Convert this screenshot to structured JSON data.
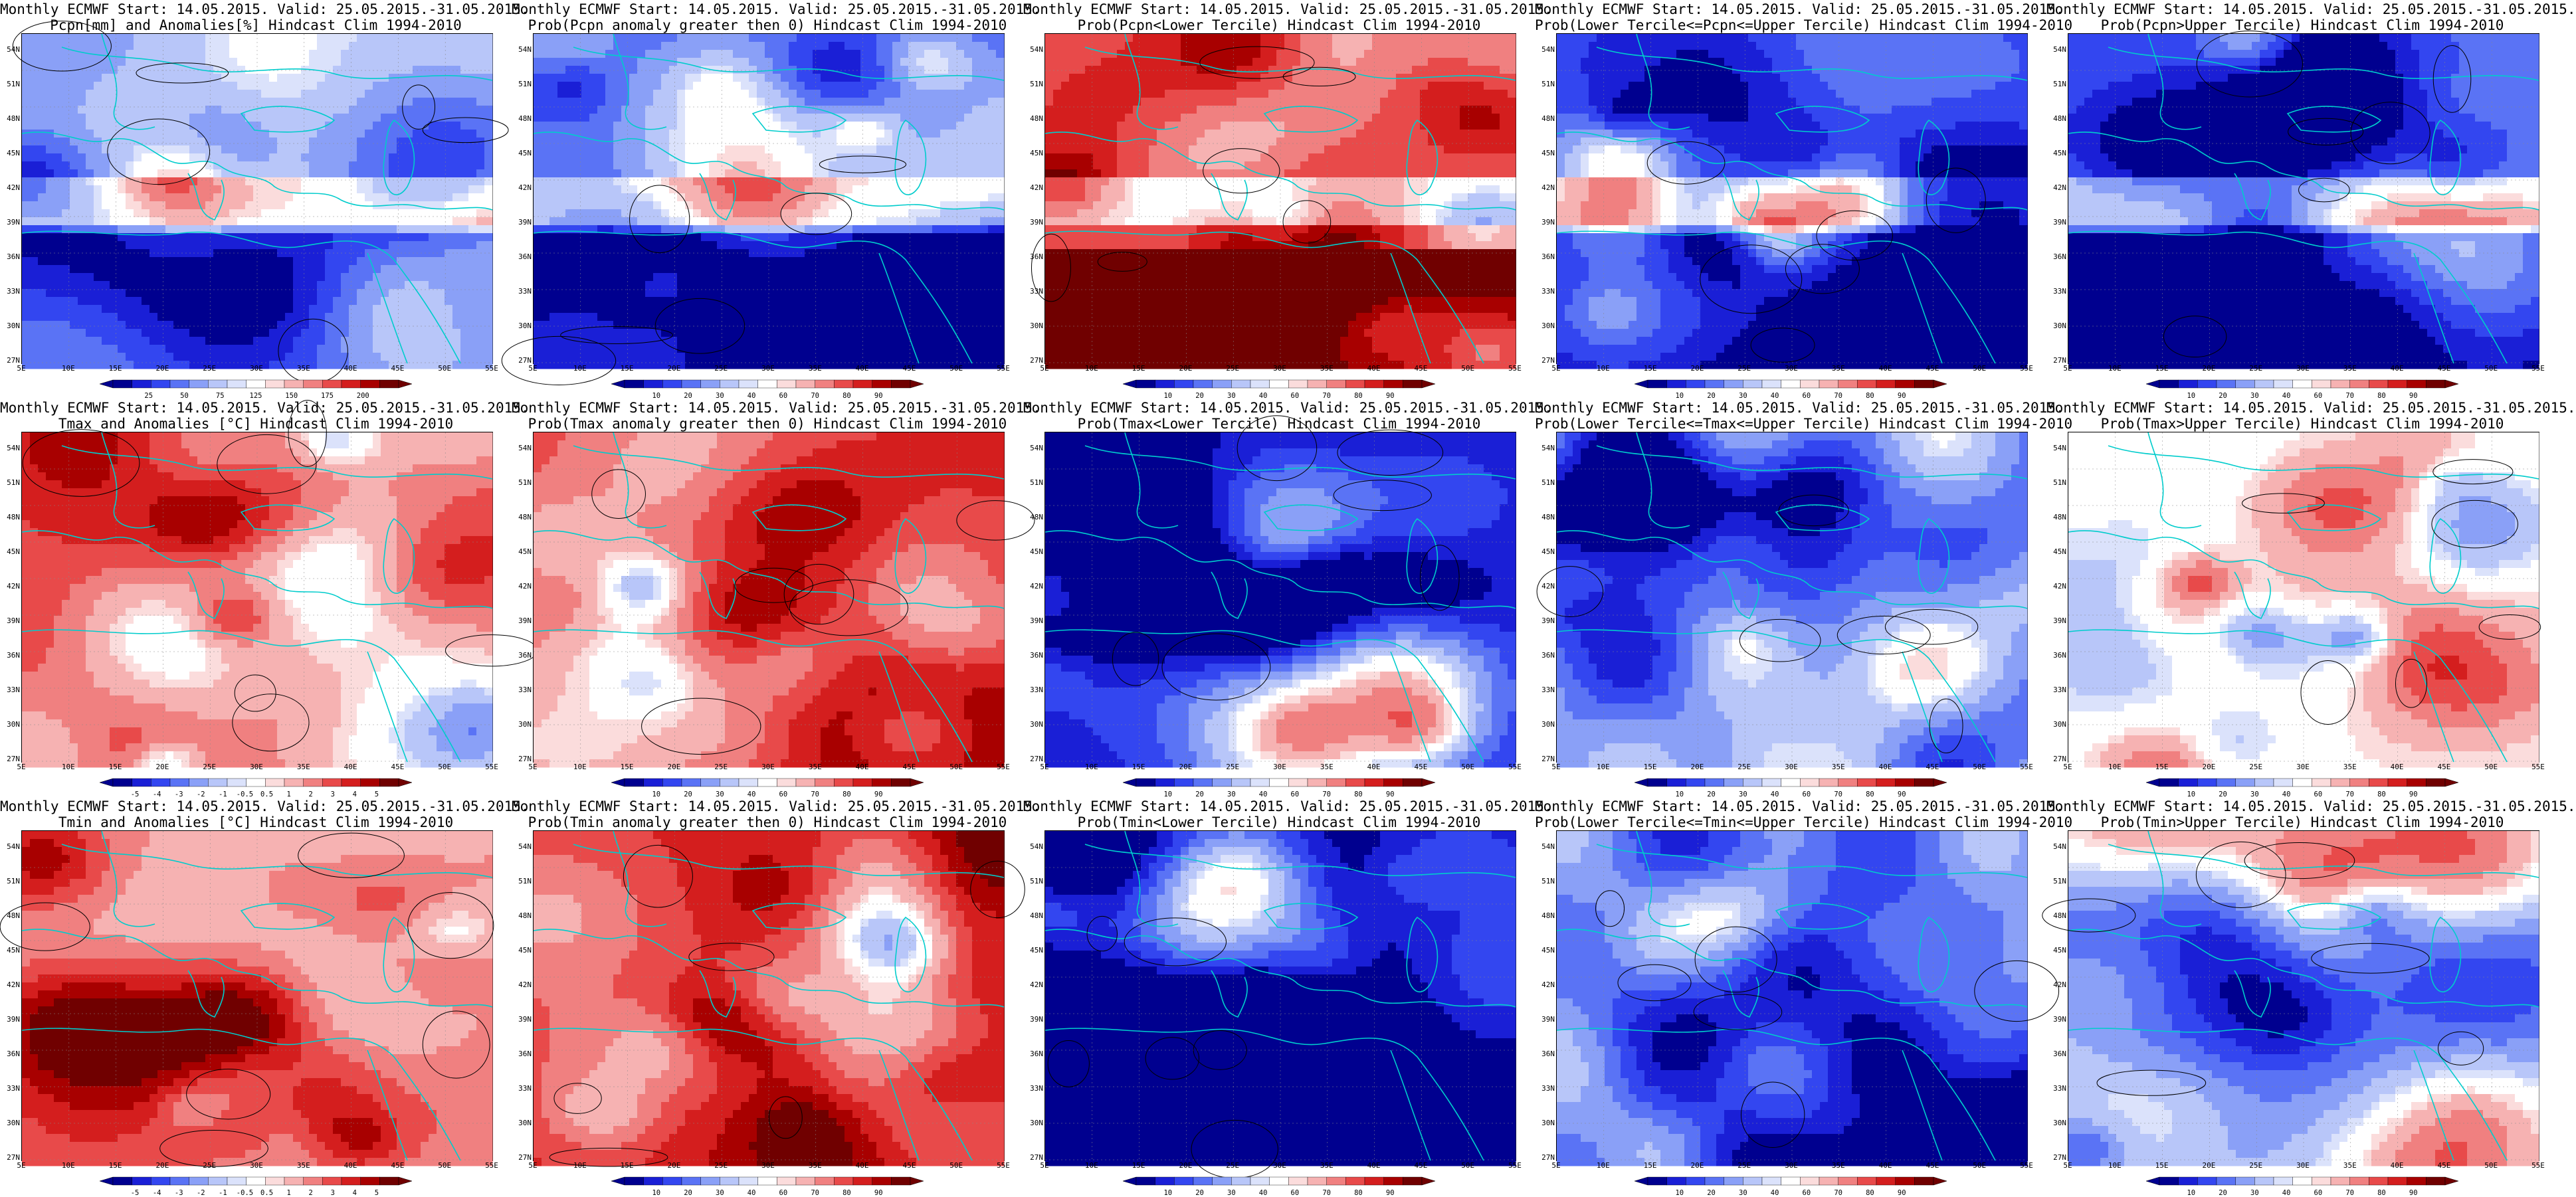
{
  "colors": {
    "blue_ramp": [
      "#00008f",
      "#1a1fd6",
      "#3346f0",
      "#5a73f5",
      "#8aa0f7",
      "#b8c6f9",
      "#dbe2fb"
    ],
    "red_ramp": [
      "#fbdcdc",
      "#f6b2b2",
      "#f08080",
      "#e84a4a",
      "#d41e1e",
      "#a80000",
      "#700000"
    ],
    "white": "#ffffff",
    "coast": "#00cccc",
    "contour": "#000000"
  },
  "axes": {
    "y_ticks": [
      "54N",
      "51N",
      "48N",
      "45N",
      "42N",
      "39N",
      "36N",
      "33N",
      "30N",
      "27N"
    ],
    "x_ticks": [
      "5E",
      "10E",
      "15E",
      "20E",
      "25E",
      "30E",
      "35E",
      "40E",
      "45E",
      "50E",
      "55E"
    ]
  },
  "colorbars": {
    "precip_anom": [
      "25",
      "50",
      "75",
      "125",
      "150",
      "175",
      "200"
    ],
    "prob": [
      "10",
      "20",
      "30",
      "40",
      "60",
      "70",
      "80",
      "90"
    ],
    "temp_anom": [
      "-5",
      "-4",
      "-3",
      "-2",
      "-1",
      "-0.5",
      "0.5",
      "1",
      "2",
      "3",
      "4",
      "5"
    ]
  },
  "panels": [
    {
      "title1": "Monthly ECMWF Start: 14.05.2015. Valid: 25.05.2015.-31.05.2015.",
      "title2": "Pcpn[mm] and Anomalies[%] Hindcast Clim 1994-2010",
      "cbar": "precip_anom",
      "bias": -0.15,
      "seed": 1,
      "pattern": "pcp"
    },
    {
      "title1": "Monthly ECMWF Start: 14.05.2015. Valid: 25.05.2015.-31.05.2015.",
      "title2": "Prob(Pcpn anomaly greater then 0) Hindcast Clim 1994-2010",
      "cbar": "prob",
      "bias": -0.55,
      "seed": 2,
      "pattern": "pcp"
    },
    {
      "title1": "Monthly ECMWF Start: 14.05.2015. Valid: 25.05.2015.-31.05.2015.",
      "title2": "Prob(Pcpn<Lower Tercile) Hindcast Clim 1994-2010",
      "cbar": "prob",
      "bias": 0.35,
      "seed": 3,
      "pattern": "pcpinv"
    },
    {
      "title1": "Monthly ECMWF Start: 14.05.2015. Valid: 25.05.2015.-31.05.2015.",
      "title2": "Prob(Lower Tercile<=Pcpn<=Upper Tercile) Hindcast Clim 1994-2010",
      "cbar": "prob",
      "bias": -0.65,
      "seed": 4,
      "pattern": "pcp"
    },
    {
      "title1": "Monthly ECMWF Start: 14.05.2015. Valid: 25.05.2015.-31.05.2015.",
      "title2": "Prob(Pcpn>Upper Tercile) Hindcast Clim 1994-2010",
      "cbar": "prob",
      "bias": -0.6,
      "seed": 5,
      "pattern": "pcp"
    },
    {
      "title1": "Monthly ECMWF Start: 14.05.2015. Valid: 25.05.2015.-31.05.2015.",
      "title2": "Tmax and Anomalies [°C] Hindcast Clim 1994-2010",
      "cbar": "temp_anom",
      "bias": 0.4,
      "seed": 6,
      "pattern": "warm"
    },
    {
      "title1": "Monthly ECMWF Start: 14.05.2015. Valid: 25.05.2015.-31.05.2015.",
      "title2": "Prob(Tmax anomaly greater then 0) Hindcast Clim 1994-2010",
      "cbar": "prob",
      "bias": 0.55,
      "seed": 7,
      "pattern": "warm"
    },
    {
      "title1": "Monthly ECMWF Start: 14.05.2015. Valid: 25.05.2015.-31.05.2015.",
      "title2": "Prob(Tmax<Lower Tercile) Hindcast Clim 1994-2010",
      "cbar": "prob",
      "bias": -0.85,
      "seed": 8,
      "pattern": "warm"
    },
    {
      "title1": "Monthly ECMWF Start: 14.05.2015. Valid: 25.05.2015.-31.05.2015.",
      "title2": "Prob(Lower Tercile<=Tmax<=Upper Tercile) Hindcast Clim 1994-2010",
      "cbar": "prob",
      "bias": -0.35,
      "seed": 9,
      "pattern": "mix"
    },
    {
      "title1": "Monthly ECMWF Start: 14.05.2015. Valid: 25.05.2015.-31.05.2015.",
      "title2": "Prob(Tmax>Upper Tercile) Hindcast Clim 1994-2010",
      "cbar": "prob",
      "bias": 0.05,
      "seed": 10,
      "pattern": "warm"
    },
    {
      "title1": "Monthly ECMWF Start: 14.05.2015. Valid: 25.05.2015.-31.05.2015.",
      "title2": "Tmin and Anomalies [°C] Hindcast Clim 1994-2010",
      "cbar": "temp_anom",
      "bias": 0.3,
      "seed": 11,
      "pattern": "warm"
    },
    {
      "title1": "Monthly ECMWF Start: 14.05.2015. Valid: 25.05.2015.-31.05.2015.",
      "title2": "Prob(Tmin anomaly greater then 0) Hindcast Clim 1994-2010",
      "cbar": "prob",
      "bias": 0.6,
      "seed": 12,
      "pattern": "warm"
    },
    {
      "title1": "Monthly ECMWF Start: 14.05.2015. Valid: 25.05.2015.-31.05.2015.",
      "title2": "Prob(Tmin<Lower Tercile) Hindcast Clim 1994-2010",
      "cbar": "prob",
      "bias": -0.9,
      "seed": 13,
      "pattern": "warm"
    },
    {
      "title1": "Monthly ECMWF Start: 14.05.2015. Valid: 25.05.2015.-31.05.2015.",
      "title2": "Prob(Lower Tercile<=Tmin<=Upper Tercile) Hindcast Clim 1994-2010",
      "cbar": "prob",
      "bias": -0.45,
      "seed": 14,
      "pattern": "mix"
    },
    {
      "title1": "Monthly ECMWF Start: 14.05.2015. Valid: 25.05.2015.-31.05.2015.",
      "title2": "Prob(Tmin>Upper Tercile) Hindcast Clim 1994-2010",
      "cbar": "prob",
      "bias": -0.05,
      "seed": 15,
      "pattern": "warm"
    }
  ]
}
